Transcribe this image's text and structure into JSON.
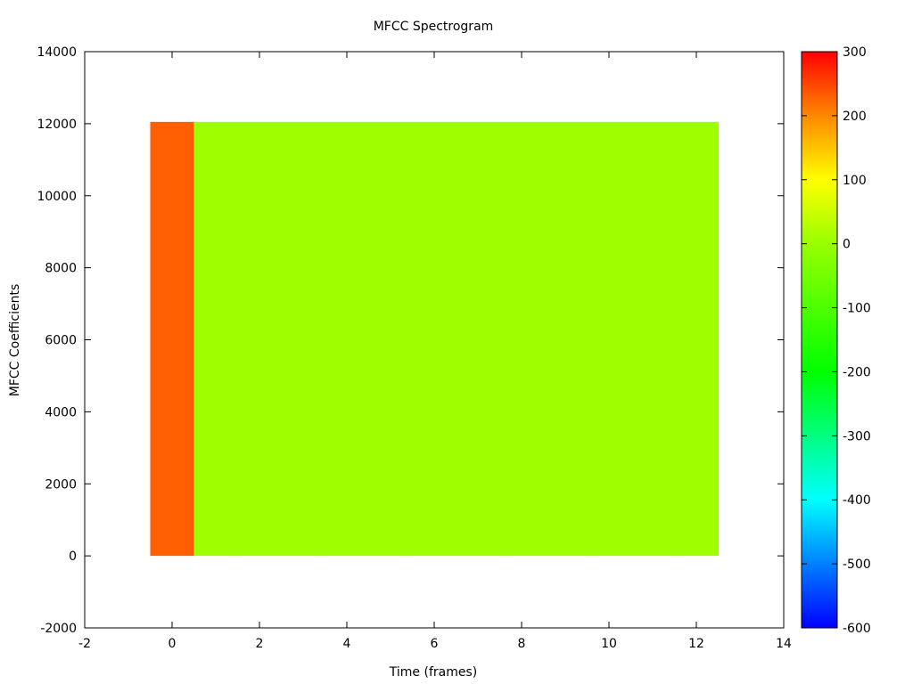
{
  "chart_data": {
    "type": "heatmap",
    "title": "MFCC Spectrogram",
    "xlabel": "Time (frames)",
    "ylabel": "MFCC Coefficients",
    "xlim": [
      -2,
      14
    ],
    "ylim": [
      -2000,
      14000
    ],
    "x_ticks": [
      -2,
      0,
      2,
      4,
      6,
      8,
      10,
      12,
      14
    ],
    "y_ticks": [
      -2000,
      0,
      2000,
      4000,
      6000,
      8000,
      10000,
      12000,
      14000
    ],
    "frames": [
      0,
      1,
      2,
      3,
      4,
      5,
      6,
      7,
      8,
      9,
      10,
      11,
      12
    ],
    "frame_width": 1,
    "y_range": [
      0,
      12050
    ],
    "values": [
      230,
      5,
      5,
      5,
      5,
      5,
      5,
      5,
      5,
      5,
      5,
      5,
      5
    ],
    "colorbar": {
      "range": [
        -600,
        300
      ],
      "ticks": [
        300,
        200,
        100,
        0,
        -100,
        -200,
        -300,
        -400,
        -500,
        -600
      ],
      "stops": [
        {
          "value": -600,
          "color": "#0000ff"
        },
        {
          "value": -400,
          "color": "#00ffff"
        },
        {
          "value": -200,
          "color": "#00ff00"
        },
        {
          "value": 0,
          "color": "#99ff00"
        },
        {
          "value": 100,
          "color": "#ffff00"
        },
        {
          "value": 200,
          "color": "#ff8800"
        },
        {
          "value": 300,
          "color": "#ff0000"
        }
      ]
    },
    "grid": false,
    "legend": "none"
  }
}
